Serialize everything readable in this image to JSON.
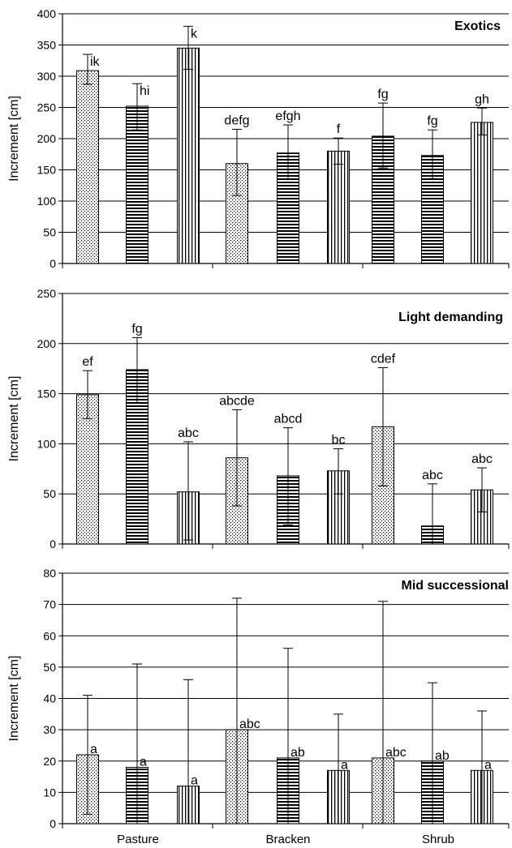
{
  "chart_data": [
    {
      "type": "bar",
      "title": "Exotics",
      "ylabel": "Increment [cm]",
      "ylim": [
        0,
        400
      ],
      "yticks": [
        0,
        50,
        100,
        150,
        200,
        250,
        300,
        350,
        400
      ],
      "grid": true,
      "group_labels": [
        "Pasture",
        "Bracken",
        "Shrub"
      ],
      "bars": [
        {
          "value": 309,
          "err_low": 287,
          "err_high": 335,
          "label": "ik",
          "pattern": "dots"
        },
        {
          "value": 252,
          "err_low": 214,
          "err_high": 288,
          "label": "hi",
          "pattern": "horizontal"
        },
        {
          "value": 345,
          "err_low": 311,
          "err_high": 380,
          "label": "k",
          "pattern": "vertical"
        },
        {
          "value": 160,
          "err_low": 109,
          "err_high": 215,
          "label": "defg",
          "pattern": "dots"
        },
        {
          "value": 177,
          "err_low": 135,
          "err_high": 222,
          "label": "efgh",
          "pattern": "horizontal"
        },
        {
          "value": 180,
          "err_low": 159,
          "err_high": 201,
          "label": "f",
          "pattern": "vertical"
        },
        {
          "value": 204,
          "err_low": 153,
          "err_high": 257,
          "label": "fg",
          "pattern": "horizontal"
        },
        {
          "value": 173,
          "err_low": 136,
          "err_high": 214,
          "label": "fg",
          "pattern": "horizontal"
        },
        {
          "value": 226,
          "err_low": 206,
          "err_high": 249,
          "label": "gh",
          "pattern": "vertical"
        }
      ]
    },
    {
      "type": "bar",
      "title": "Light demanding",
      "ylabel": "Increment [cm]",
      "ylim": [
        0,
        250
      ],
      "yticks": [
        0,
        50,
        100,
        150,
        200,
        250
      ],
      "grid": true,
      "group_labels": [
        "Pasture",
        "Bracken",
        "Shrub"
      ],
      "bars": [
        {
          "value": 149,
          "err_low": 125,
          "err_high": 173,
          "label": "ef",
          "pattern": "dots"
        },
        {
          "value": 174,
          "err_low": 141,
          "err_high": 206,
          "label": "fg",
          "pattern": "horizontal"
        },
        {
          "value": 52,
          "err_low": 4,
          "err_high": 102,
          "label": "abc",
          "pattern": "vertical"
        },
        {
          "value": 86,
          "err_low": 38,
          "err_high": 134,
          "label": "abcde",
          "pattern": "dots"
        },
        {
          "value": 68,
          "err_low": 19,
          "err_high": 116,
          "label": "abcd",
          "pattern": "horizontal"
        },
        {
          "value": 73,
          "err_low": 50,
          "err_high": 95,
          "label": "bc",
          "pattern": "vertical"
        },
        {
          "value": 117,
          "err_low": 58,
          "err_high": 176,
          "label": "cdef",
          "pattern": "dots"
        },
        {
          "value": 18,
          "err_low": 0,
          "err_high": 60,
          "label": "abc",
          "pattern": "horizontal"
        },
        {
          "value": 54,
          "err_low": 32,
          "err_high": 76,
          "label": "abc",
          "pattern": "vertical"
        }
      ]
    },
    {
      "type": "bar",
      "title": "Mid successional",
      "ylabel": "Increment [cm]",
      "ylim": [
        0,
        80
      ],
      "yticks": [
        0,
        10,
        20,
        30,
        40,
        50,
        60,
        70,
        80
      ],
      "grid": true,
      "group_labels": [
        "Pasture",
        "Bracken",
        "Shrub"
      ],
      "bars": [
        {
          "value": 22,
          "err_low": 3,
          "err_high": 41,
          "label": "a",
          "pattern": "dots"
        },
        {
          "value": 18,
          "err_low": 0,
          "err_high": 51,
          "label": "a",
          "pattern": "horizontal"
        },
        {
          "value": 12,
          "err_low": 0,
          "err_high": 46,
          "label": "a",
          "pattern": "vertical"
        },
        {
          "value": 30,
          "err_low": 0,
          "err_high": 72,
          "label": "abc",
          "pattern": "dots"
        },
        {
          "value": 21,
          "err_low": 0,
          "err_high": 56,
          "label": "ab",
          "pattern": "horizontal"
        },
        {
          "value": 17,
          "err_low": 0,
          "err_high": 35,
          "label": "a",
          "pattern": "vertical"
        },
        {
          "value": 21,
          "err_low": 0,
          "err_high": 71,
          "label": "abc",
          "pattern": "dots"
        },
        {
          "value": 20,
          "err_low": 0,
          "err_high": 45,
          "label": "ab",
          "pattern": "horizontal"
        },
        {
          "value": 17,
          "err_low": 0,
          "err_high": 36,
          "label": "a",
          "pattern": "vertical"
        }
      ]
    }
  ]
}
